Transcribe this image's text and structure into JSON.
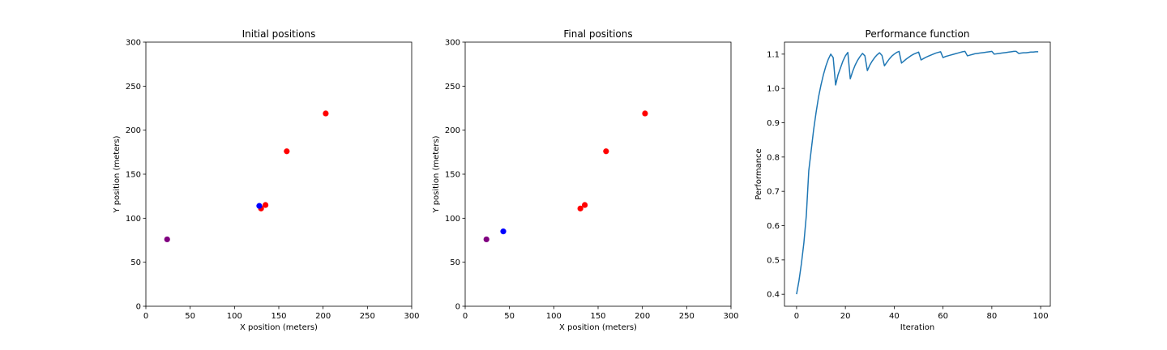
{
  "chart_data": [
    {
      "type": "scatter",
      "title": "Initial positions",
      "xlabel": "X position (meters)",
      "ylabel": "Y position (meters)",
      "xlim": [
        0,
        300
      ],
      "ylim": [
        0,
        300
      ],
      "xticks": [
        0,
        50,
        100,
        150,
        200,
        250,
        300
      ],
      "yticks": [
        0,
        50,
        100,
        150,
        200,
        250,
        300
      ],
      "grid": false,
      "series": [
        {
          "color": "#ff0000",
          "points": [
            [
              130,
              111
            ],
            [
              135,
              115
            ],
            [
              159,
              176
            ],
            [
              203,
              219
            ]
          ]
        },
        {
          "color": "#0000ff",
          "points": [
            [
              128,
              114
            ]
          ]
        },
        {
          "color": "#800080",
          "points": [
            [
              24,
              76
            ]
          ]
        }
      ]
    },
    {
      "type": "scatter",
      "title": "Final positions",
      "xlabel": "X position (meters)",
      "ylabel": "Y position (meters)",
      "xlim": [
        0,
        300
      ],
      "ylim": [
        0,
        300
      ],
      "xticks": [
        0,
        50,
        100,
        150,
        200,
        250,
        300
      ],
      "yticks": [
        0,
        50,
        100,
        150,
        200,
        250,
        300
      ],
      "grid": false,
      "series": [
        {
          "color": "#ff0000",
          "points": [
            [
              130,
              111
            ],
            [
              135,
              115
            ],
            [
              159,
              176
            ],
            [
              203,
              219
            ]
          ]
        },
        {
          "color": "#0000ff",
          "points": [
            [
              43,
              85
            ]
          ]
        },
        {
          "color": "#800080",
          "points": [
            [
              24,
              76
            ]
          ]
        }
      ]
    },
    {
      "type": "line",
      "title": "Performance function",
      "xlabel": "Iteration",
      "ylabel": "Performance",
      "xlim": [
        -4.95,
        103.95
      ],
      "ylim": [
        0.365,
        1.135
      ],
      "xticks": [
        0,
        20,
        40,
        60,
        80,
        100
      ],
      "yticks": [
        0.4,
        0.5,
        0.6,
        0.7,
        0.8,
        0.9,
        1.0,
        1.1
      ],
      "ytick_format": "1dp",
      "grid": false,
      "series": [
        {
          "color": "#1f77b4",
          "x": [
            0,
            1,
            2,
            3,
            4,
            5,
            6,
            7,
            8,
            9,
            10,
            11,
            12,
            13,
            14,
            15,
            16,
            17,
            18,
            19,
            20,
            21,
            22,
            23,
            24,
            25,
            26,
            27,
            28,
            29,
            30,
            31,
            32,
            33,
            34,
            35,
            36,
            37,
            38,
            39,
            40,
            41,
            42,
            43,
            44,
            45,
            46,
            47,
            48,
            49,
            50,
            51,
            52,
            53,
            54,
            55,
            56,
            57,
            58,
            59,
            60,
            61,
            62,
            63,
            64,
            65,
            66,
            67,
            68,
            69,
            70,
            71,
            72,
            73,
            74,
            75,
            76,
            77,
            78,
            79,
            80,
            81,
            82,
            83,
            84,
            85,
            86,
            87,
            88,
            89,
            90,
            91,
            92,
            93,
            94,
            95,
            96,
            97,
            98,
            99
          ],
          "y": [
            0.4,
            0.44,
            0.49,
            0.55,
            0.63,
            0.76,
            0.82,
            0.88,
            0.93,
            0.975,
            1.01,
            1.04,
            1.065,
            1.085,
            1.1,
            1.09,
            1.01,
            1.04,
            1.06,
            1.08,
            1.095,
            1.105,
            1.028,
            1.05,
            1.068,
            1.082,
            1.093,
            1.102,
            1.095,
            1.052,
            1.068,
            1.08,
            1.09,
            1.098,
            1.104,
            1.096,
            1.066,
            1.076,
            1.086,
            1.094,
            1.1,
            1.105,
            1.108,
            1.074,
            1.08,
            1.086,
            1.091,
            1.096,
            1.1,
            1.103,
            1.106,
            1.083,
            1.087,
            1.091,
            1.094,
            1.097,
            1.1,
            1.103,
            1.105,
            1.107,
            1.09,
            1.093,
            1.095,
            1.097,
            1.099,
            1.101,
            1.103,
            1.105,
            1.107,
            1.108,
            1.095,
            1.097,
            1.099,
            1.101,
            1.102,
            1.103,
            1.104,
            1.105,
            1.106,
            1.107,
            1.108,
            1.1,
            1.101,
            1.102,
            1.103,
            1.104,
            1.105,
            1.106,
            1.107,
            1.108,
            1.108,
            1.102,
            1.103,
            1.104,
            1.104,
            1.105,
            1.106,
            1.106,
            1.107,
            1.107
          ]
        }
      ]
    }
  ]
}
